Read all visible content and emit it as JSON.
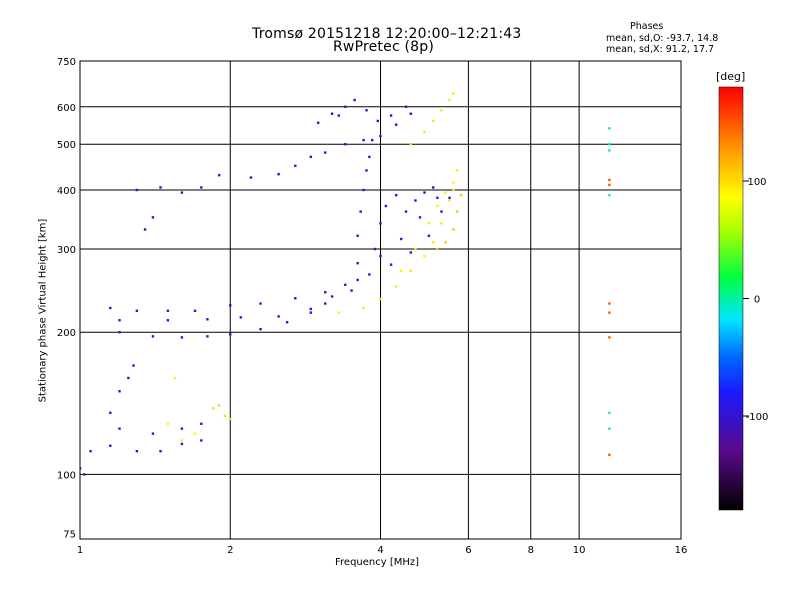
{
  "chart_data": {
    "type": "scatter",
    "title": "Tromsø 20151218 12:20:00–12:21:43",
    "subtitle": "RwPretec (8p)",
    "xlabel": "Frequency [MHz]",
    "ylabel": "Stationary phase Virtual Height [km]",
    "x_scale": "log",
    "y_scale": "log",
    "xlim": [
      1,
      16
    ],
    "ylim": [
      73,
      750
    ],
    "x_ticks": [
      1,
      2,
      4,
      6,
      8,
      10,
      16
    ],
    "x_grid": [
      2,
      4,
      6,
      8,
      10
    ],
    "y_ticks": [
      75,
      100,
      200,
      300,
      400,
      500,
      600,
      750
    ],
    "y_grid": [
      100,
      200,
      300,
      400,
      500,
      600
    ],
    "grid": true,
    "phase_stats": {
      "title": "Phases",
      "line_o": "mean, sd,O: -93.7, 14.8",
      "line_x": "mean, sd,X:  91.2, 17.7"
    },
    "colorbar": {
      "label": "[deg]",
      "range": [
        -180,
        180
      ],
      "ticks": [
        100,
        0,
        -100
      ]
    },
    "series": [
      {
        "mode": "O",
        "phase": -100,
        "points": [
          [
            1.2,
            200
          ],
          [
            1.4,
            196
          ],
          [
            1.6,
            195
          ],
          [
            1.8,
            196
          ],
          [
            2.0,
            198
          ],
          [
            2.3,
            203
          ],
          [
            2.6,
            210
          ],
          [
            2.9,
            220
          ],
          [
            3.1,
            230
          ]
        ]
      },
      {
        "mode": "O",
        "phase": -95,
        "points": [
          [
            1.15,
            225
          ],
          [
            1.3,
            222
          ],
          [
            1.5,
            222
          ],
          [
            1.7,
            222
          ],
          [
            2.0,
            228
          ],
          [
            2.3,
            230
          ],
          [
            2.7,
            236
          ],
          [
            3.1,
            243
          ],
          [
            3.4,
            252
          ],
          [
            3.8,
            265
          ],
          [
            4.2,
            278
          ],
          [
            4.6,
            295
          ],
          [
            5.0,
            320
          ],
          [
            5.3,
            360
          ],
          [
            5.5,
            385
          ]
        ]
      },
      {
        "mode": "O",
        "phase": -90,
        "points": [
          [
            1.2,
            212
          ],
          [
            1.5,
            212
          ],
          [
            1.8,
            213
          ],
          [
            2.1,
            215
          ],
          [
            2.5,
            216
          ],
          [
            2.9,
            224
          ],
          [
            3.2,
            238
          ],
          [
            3.6,
            258
          ],
          [
            4.0,
            290
          ],
          [
            4.4,
            315
          ],
          [
            4.8,
            350
          ],
          [
            5.2,
            385
          ]
        ]
      },
      {
        "mode": "O",
        "phase": -100,
        "points": [
          [
            3.5,
            245
          ],
          [
            3.6,
            280
          ],
          [
            3.6,
            320
          ],
          [
            3.65,
            360
          ],
          [
            3.7,
            400
          ],
          [
            3.75,
            440
          ],
          [
            3.8,
            470
          ],
          [
            3.85,
            510
          ]
        ]
      },
      {
        "mode": "O",
        "phase": -98,
        "points": [
          [
            3.9,
            300
          ],
          [
            4.0,
            340
          ],
          [
            4.1,
            370
          ],
          [
            4.3,
            390
          ],
          [
            4.5,
            360
          ],
          [
            4.7,
            380
          ],
          [
            4.9,
            395
          ],
          [
            5.1,
            405
          ]
        ]
      },
      {
        "mode": "O",
        "phase": -92,
        "points": [
          [
            1.9,
            430
          ],
          [
            2.2,
            425
          ],
          [
            2.5,
            432
          ],
          [
            2.7,
            450
          ],
          [
            2.9,
            470
          ],
          [
            3.1,
            480
          ],
          [
            3.4,
            500
          ],
          [
            3.7,
            510
          ],
          [
            4.0,
            520
          ],
          [
            4.3,
            550
          ],
          [
            4.6,
            580
          ]
        ]
      },
      {
        "mode": "O",
        "phase": -105,
        "points": [
          [
            1.3,
            400
          ],
          [
            1.45,
            405
          ],
          [
            1.6,
            395
          ],
          [
            1.75,
            405
          ],
          [
            1.4,
            350
          ],
          [
            1.35,
            330
          ]
        ]
      },
      {
        "mode": "O",
        "phase": -100,
        "points": [
          [
            1.05,
            112
          ],
          [
            1.15,
            115
          ],
          [
            1.3,
            112
          ],
          [
            1.45,
            112
          ],
          [
            1.6,
            116
          ],
          [
            1.75,
            118
          ],
          [
            1.2,
            125
          ],
          [
            1.4,
            122
          ],
          [
            1.6,
            125
          ],
          [
            1.75,
            128
          ],
          [
            1.15,
            135
          ],
          [
            1.2,
            150
          ],
          [
            1.25,
            160
          ],
          [
            1.28,
            170
          ],
          [
            1.02,
            100
          ],
          [
            1.0,
            103
          ]
        ]
      },
      {
        "mode": "O",
        "phase": -98,
        "points": [
          [
            3.2,
            580
          ],
          [
            3.4,
            600
          ],
          [
            3.55,
            620
          ],
          [
            3.75,
            590
          ],
          [
            3.95,
            560
          ],
          [
            4.2,
            575
          ],
          [
            4.5,
            600
          ],
          [
            3.0,
            555
          ],
          [
            3.3,
            575
          ]
        ]
      },
      {
        "mode": "X",
        "phase": 95,
        "points": [
          [
            3.3,
            220
          ],
          [
            3.7,
            225
          ],
          [
            4.0,
            235
          ],
          [
            4.3,
            250
          ],
          [
            4.6,
            270
          ],
          [
            4.9,
            290
          ],
          [
            5.1,
            310
          ],
          [
            5.3,
            340
          ],
          [
            5.5,
            380
          ],
          [
            5.6,
            400
          ]
        ]
      },
      {
        "mode": "X",
        "phase": 92,
        "points": [
          [
            4.4,
            270
          ],
          [
            4.7,
            300
          ],
          [
            5.0,
            340
          ],
          [
            5.2,
            370
          ],
          [
            5.4,
            395
          ],
          [
            5.6,
            415
          ],
          [
            5.7,
            440
          ]
        ]
      },
      {
        "mode": "X",
        "phase": 95,
        "points": [
          [
            4.6,
            500
          ],
          [
            4.9,
            530
          ],
          [
            5.1,
            560
          ],
          [
            5.3,
            590
          ],
          [
            5.5,
            620
          ],
          [
            5.6,
            640
          ]
        ]
      },
      {
        "mode": "X",
        "phase": 110,
        "points": [
          [
            5.2,
            300
          ],
          [
            5.4,
            310
          ],
          [
            5.6,
            330
          ],
          [
            5.7,
            360
          ],
          [
            5.8,
            390
          ]
        ]
      },
      {
        "mode": "X",
        "phase": 150,
        "points": [
          [
            11.5,
            110
          ],
          [
            11.5,
            220
          ],
          [
            11.5,
            230
          ],
          [
            11.5,
            195
          ],
          [
            11.5,
            410
          ],
          [
            11.5,
            420
          ]
        ]
      },
      {
        "mode": "X",
        "phase": -10,
        "points": [
          [
            11.5,
            135
          ],
          [
            11.5,
            540
          ],
          [
            11.5,
            500
          ],
          [
            11.5,
            485
          ],
          [
            11.5,
            390
          ],
          [
            11.5,
            125
          ]
        ]
      },
      {
        "mode": "X",
        "phase": 60,
        "points": [
          [
            1.9,
            140
          ],
          [
            1.95,
            133
          ],
          [
            2.0,
            131
          ],
          [
            1.85,
            138
          ]
        ]
      },
      {
        "mode": "X",
        "phase": 90,
        "points": [
          [
            1.55,
            160
          ],
          [
            1.6,
            118
          ],
          [
            1.7,
            122
          ],
          [
            1.5,
            128
          ]
        ]
      }
    ]
  }
}
